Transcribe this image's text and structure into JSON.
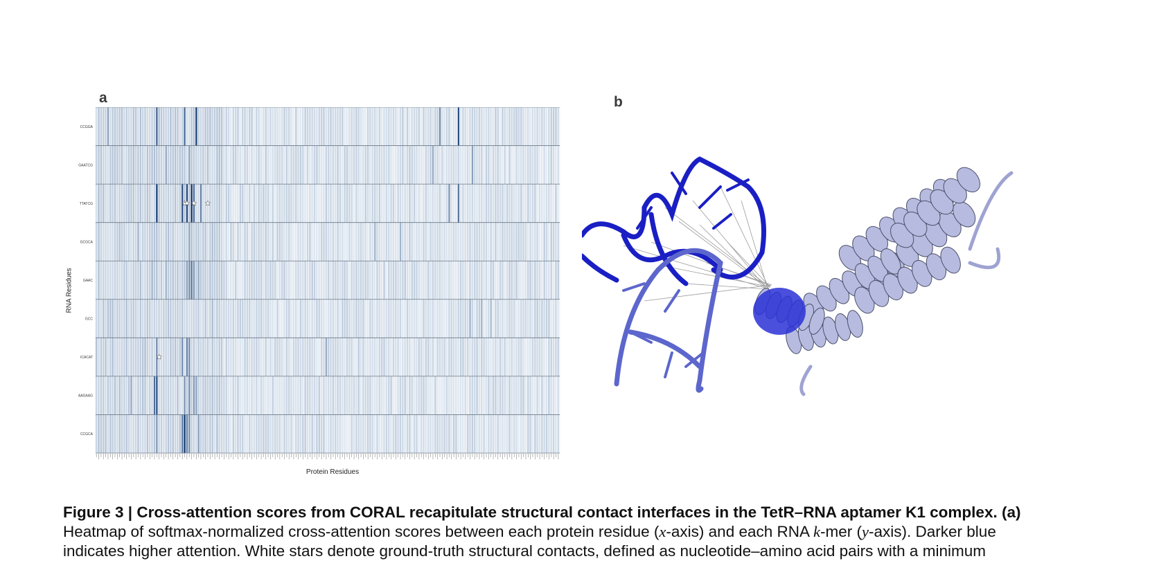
{
  "panel_a_label": "a",
  "panel_b_label": "b",
  "chart_data": {
    "type": "heatmap",
    "xlabel": "Protein Residues",
    "ylabel": "RNA Residues",
    "rows": [
      "CCGGA",
      "GAATCG",
      "TTATCG",
      "GCGCA",
      "GAAC",
      "GCC",
      "ICACAT",
      "AAGAAG",
      "CCGCA"
    ],
    "num_columns": 200,
    "colormap": [
      "#f4f9fd",
      "#08306b"
    ],
    "hotspots": [
      {
        "row": 0,
        "cols": [
          5,
          26,
          38,
          43,
          148,
          156
        ],
        "values": [
          0.45,
          0.75,
          0.7,
          0.95,
          0.55,
          0.85
        ]
      },
      {
        "row": 1,
        "cols": [
          30,
          40,
          145,
          162
        ],
        "values": [
          0.4,
          0.45,
          0.4,
          0.45
        ]
      },
      {
        "row": 2,
        "cols": [
          26,
          37,
          39,
          41,
          42,
          45,
          152,
          156
        ],
        "values": [
          0.95,
          0.85,
          0.9,
          0.98,
          0.7,
          0.6,
          0.5,
          0.65
        ]
      },
      {
        "row": 3,
        "cols": [
          18,
          40,
          120,
          131
        ],
        "values": [
          0.35,
          0.45,
          0.35,
          0.35
        ]
      },
      {
        "row": 4,
        "cols": [
          24,
          30,
          39,
          40,
          41,
          42,
          44
        ],
        "values": [
          0.35,
          0.35,
          0.45,
          0.55,
          0.65,
          0.5,
          0.4
        ]
      },
      {
        "row": 5,
        "cols": [
          50,
          161,
          166,
          170
        ],
        "values": [
          0.3,
          0.35,
          0.35,
          0.3
        ]
      },
      {
        "row": 6,
        "cols": [
          26,
          37,
          39,
          40,
          99
        ],
        "values": [
          0.55,
          0.55,
          0.6,
          0.55,
          0.4
        ]
      },
      {
        "row": 7,
        "cols": [
          15,
          25,
          26,
          38,
          40,
          42,
          43
        ],
        "values": [
          0.4,
          0.7,
          0.85,
          0.5,
          0.55,
          0.5,
          0.45
        ]
      },
      {
        "row": 8,
        "cols": [
          26,
          37,
          38,
          39,
          40,
          44
        ],
        "values": [
          0.5,
          0.65,
          0.98,
          0.6,
          0.55,
          0.45
        ]
      }
    ],
    "stars": [
      {
        "row": 2,
        "col": 38
      },
      {
        "row": 2,
        "col": 39
      },
      {
        "row": 2,
        "col": 42
      },
      {
        "row": 2,
        "col": 48
      },
      {
        "row": 6,
        "col": 27
      }
    ]
  },
  "caption": {
    "title": "Figure 3 | Cross-attention scores from CORAL recapitulate structural contact interfaces in the TetR–RNA aptamer K1 complex. (a)",
    "line2_pre": "Heatmap of softmax-normalized cross-attention scores between each protein residue (",
    "x_var": "x",
    "line2_mid1": "-axis) and each RNA ",
    "k_var": "k",
    "line2_mid2": "-mer (",
    "y_var": "y",
    "line2_end": "-axis). Darker blue",
    "line3": "indicates higher attention. White stars denote ground-truth structural contacts, defined as nucleotide–amino acid pairs with a minimum"
  },
  "colors": {
    "rna_strong": "#1a1fc4",
    "rna_medium": "#5c66cc",
    "protein_light": "#b6bbdf",
    "protein_contact": "#2a31d6",
    "contact_line": "#9a9a9a"
  }
}
